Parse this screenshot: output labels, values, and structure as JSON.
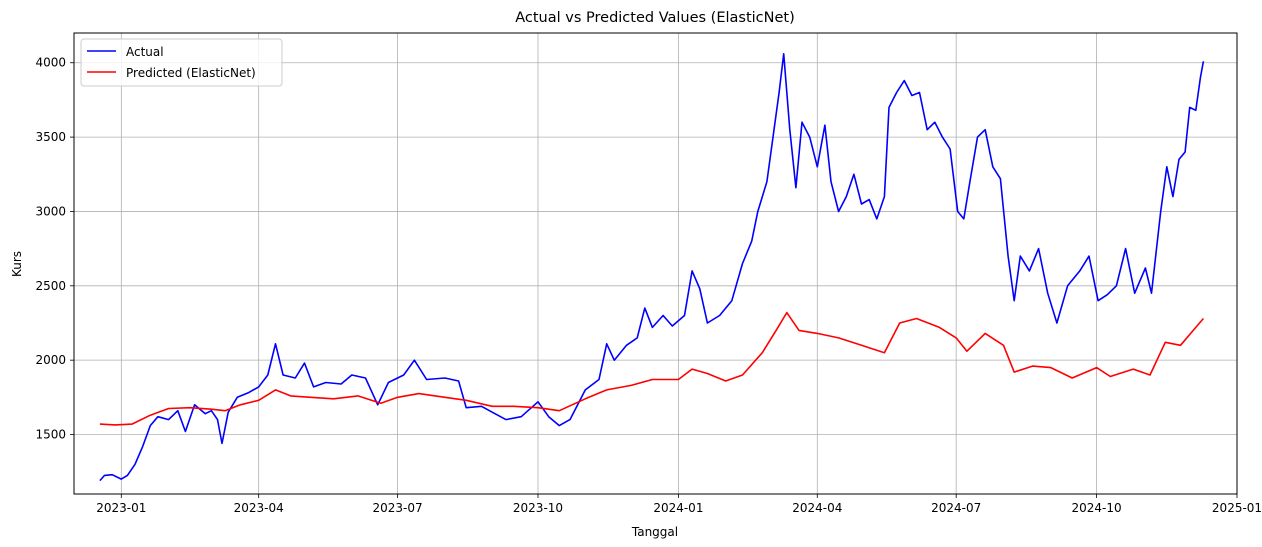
{
  "chart_data": {
    "type": "line",
    "title": "Actual vs Predicted Values (ElasticNet)",
    "xlabel": "Tanggal",
    "ylabel": "Kurs",
    "x_tick_labels": [
      "2023-01",
      "2023-04",
      "2023-07",
      "2023-10",
      "2024-01",
      "2024-04",
      "2024-07",
      "2024-10",
      "2025-01"
    ],
    "x_range": [
      "2022-12-01",
      "2025-01-01"
    ],
    "y_ticks": [
      1500,
      2000,
      2500,
      3000,
      3500,
      4000
    ],
    "ylim": [
      1100,
      4200
    ],
    "grid": true,
    "legend_position": "top-left",
    "series": [
      {
        "name": "Actual",
        "color": "#0000ff",
        "points": [
          [
            "2022-12-18",
            1190
          ],
          [
            "2022-12-21",
            1225
          ],
          [
            "2022-12-26",
            1230
          ],
          [
            "2023-01-01",
            1200
          ],
          [
            "2023-01-05",
            1225
          ],
          [
            "2023-01-10",
            1300
          ],
          [
            "2023-01-15",
            1420
          ],
          [
            "2023-01-20",
            1560
          ],
          [
            "2023-01-25",
            1620
          ],
          [
            "2023-02-01",
            1600
          ],
          [
            "2023-02-07",
            1660
          ],
          [
            "2023-02-12",
            1520
          ],
          [
            "2023-02-18",
            1700
          ],
          [
            "2023-02-25",
            1640
          ],
          [
            "2023-03-01",
            1660
          ],
          [
            "2023-03-05",
            1600
          ],
          [
            "2023-03-08",
            1440
          ],
          [
            "2023-03-12",
            1650
          ],
          [
            "2023-03-18",
            1750
          ],
          [
            "2023-03-25",
            1780
          ],
          [
            "2023-04-01",
            1820
          ],
          [
            "2023-04-07",
            1900
          ],
          [
            "2023-04-12",
            2110
          ],
          [
            "2023-04-17",
            1900
          ],
          [
            "2023-04-25",
            1880
          ],
          [
            "2023-05-01",
            1980
          ],
          [
            "2023-05-07",
            1820
          ],
          [
            "2023-05-15",
            1850
          ],
          [
            "2023-05-25",
            1840
          ],
          [
            "2023-06-01",
            1900
          ],
          [
            "2023-06-10",
            1880
          ],
          [
            "2023-06-18",
            1700
          ],
          [
            "2023-06-25",
            1850
          ],
          [
            "2023-07-05",
            1900
          ],
          [
            "2023-07-12",
            2000
          ],
          [
            "2023-07-20",
            1870
          ],
          [
            "2023-08-01",
            1880
          ],
          [
            "2023-08-10",
            1860
          ],
          [
            "2023-08-15",
            1680
          ],
          [
            "2023-08-25",
            1690
          ],
          [
            "2023-09-01",
            1650
          ],
          [
            "2023-09-10",
            1600
          ],
          [
            "2023-09-20",
            1620
          ],
          [
            "2023-10-01",
            1720
          ],
          [
            "2023-10-08",
            1620
          ],
          [
            "2023-10-15",
            1560
          ],
          [
            "2023-10-22",
            1600
          ],
          [
            "2023-11-01",
            1800
          ],
          [
            "2023-11-10",
            1870
          ],
          [
            "2023-11-15",
            2110
          ],
          [
            "2023-11-20",
            2000
          ],
          [
            "2023-11-28",
            2100
          ],
          [
            "2023-12-05",
            2150
          ],
          [
            "2023-12-10",
            2350
          ],
          [
            "2023-12-15",
            2220
          ],
          [
            "2023-12-22",
            2300
          ],
          [
            "2023-12-28",
            2230
          ],
          [
            "2024-01-05",
            2300
          ],
          [
            "2024-01-10",
            2600
          ],
          [
            "2024-01-15",
            2480
          ],
          [
            "2024-01-20",
            2250
          ],
          [
            "2024-01-28",
            2300
          ],
          [
            "2024-02-05",
            2400
          ],
          [
            "2024-02-12",
            2650
          ],
          [
            "2024-02-18",
            2800
          ],
          [
            "2024-02-22",
            3000
          ],
          [
            "2024-02-28",
            3200
          ],
          [
            "2024-03-03",
            3500
          ],
          [
            "2024-03-07",
            3800
          ],
          [
            "2024-03-10",
            4060
          ],
          [
            "2024-03-14",
            3550
          ],
          [
            "2024-03-18",
            3160
          ],
          [
            "2024-03-22",
            3600
          ],
          [
            "2024-03-27",
            3500
          ],
          [
            "2024-04-01",
            3300
          ],
          [
            "2024-04-06",
            3580
          ],
          [
            "2024-04-10",
            3200
          ],
          [
            "2024-04-15",
            3000
          ],
          [
            "2024-04-20",
            3100
          ],
          [
            "2024-04-25",
            3250
          ],
          [
            "2024-04-30",
            3050
          ],
          [
            "2024-05-05",
            3080
          ],
          [
            "2024-05-10",
            2950
          ],
          [
            "2024-05-15",
            3100
          ],
          [
            "2024-05-18",
            3700
          ],
          [
            "2024-05-23",
            3800
          ],
          [
            "2024-05-28",
            3880
          ],
          [
            "2024-06-02",
            3780
          ],
          [
            "2024-06-07",
            3800
          ],
          [
            "2024-06-12",
            3550
          ],
          [
            "2024-06-17",
            3600
          ],
          [
            "2024-06-22",
            3500
          ],
          [
            "2024-06-27",
            3420
          ],
          [
            "2024-07-02",
            3000
          ],
          [
            "2024-07-06",
            2950
          ],
          [
            "2024-07-10",
            3200
          ],
          [
            "2024-07-15",
            3500
          ],
          [
            "2024-07-20",
            3550
          ],
          [
            "2024-07-25",
            3300
          ],
          [
            "2024-07-30",
            3220
          ],
          [
            "2024-08-04",
            2700
          ],
          [
            "2024-08-08",
            2400
          ],
          [
            "2024-08-12",
            2700
          ],
          [
            "2024-08-18",
            2600
          ],
          [
            "2024-08-24",
            2750
          ],
          [
            "2024-08-30",
            2450
          ],
          [
            "2024-09-05",
            2250
          ],
          [
            "2024-09-12",
            2500
          ],
          [
            "2024-09-20",
            2600
          ],
          [
            "2024-09-26",
            2700
          ],
          [
            "2024-10-02",
            2400
          ],
          [
            "2024-10-08",
            2440
          ],
          [
            "2024-10-14",
            2500
          ],
          [
            "2024-10-20",
            2750
          ],
          [
            "2024-10-26",
            2450
          ],
          [
            "2024-11-02",
            2620
          ],
          [
            "2024-11-06",
            2450
          ],
          [
            "2024-11-12",
            3000
          ],
          [
            "2024-11-16",
            3300
          ],
          [
            "2024-11-20",
            3100
          ],
          [
            "2024-11-24",
            3350
          ],
          [
            "2024-11-28",
            3400
          ],
          [
            "2024-12-01",
            3700
          ],
          [
            "2024-12-05",
            3680
          ],
          [
            "2024-12-08",
            3900
          ],
          [
            "2024-12-10",
            4010
          ]
        ]
      },
      {
        "name": "Predicted (ElasticNet)",
        "color": "#ff0000",
        "points": [
          [
            "2022-12-18",
            1570
          ],
          [
            "2022-12-28",
            1565
          ],
          [
            "2023-01-08",
            1570
          ],
          [
            "2023-01-20",
            1630
          ],
          [
            "2023-02-01",
            1675
          ],
          [
            "2023-02-15",
            1680
          ],
          [
            "2023-03-01",
            1670
          ],
          [
            "2023-03-10",
            1660
          ],
          [
            "2023-03-20",
            1700
          ],
          [
            "2023-04-01",
            1730
          ],
          [
            "2023-04-12",
            1800
          ],
          [
            "2023-04-22",
            1760
          ],
          [
            "2023-05-05",
            1750
          ],
          [
            "2023-05-20",
            1740
          ],
          [
            "2023-06-05",
            1760
          ],
          [
            "2023-06-20",
            1710
          ],
          [
            "2023-07-01",
            1750
          ],
          [
            "2023-07-15",
            1775
          ],
          [
            "2023-08-01",
            1750
          ],
          [
            "2023-08-15",
            1730
          ],
          [
            "2023-09-01",
            1690
          ],
          [
            "2023-09-15",
            1690
          ],
          [
            "2023-10-01",
            1680
          ],
          [
            "2023-10-15",
            1660
          ],
          [
            "2023-11-01",
            1740
          ],
          [
            "2023-11-15",
            1800
          ],
          [
            "2023-12-01",
            1830
          ],
          [
            "2023-12-15",
            1870
          ],
          [
            "2024-01-01",
            1870
          ],
          [
            "2024-01-10",
            1940
          ],
          [
            "2024-01-20",
            1910
          ],
          [
            "2024-02-01",
            1860
          ],
          [
            "2024-02-12",
            1900
          ],
          [
            "2024-02-25",
            2050
          ],
          [
            "2024-03-05",
            2200
          ],
          [
            "2024-03-12",
            2320
          ],
          [
            "2024-03-20",
            2200
          ],
          [
            "2024-04-01",
            2180
          ],
          [
            "2024-04-15",
            2150
          ],
          [
            "2024-04-30",
            2100
          ],
          [
            "2024-05-15",
            2050
          ],
          [
            "2024-05-25",
            2250
          ],
          [
            "2024-06-05",
            2280
          ],
          [
            "2024-06-20",
            2220
          ],
          [
            "2024-07-01",
            2150
          ],
          [
            "2024-07-08",
            2060
          ],
          [
            "2024-07-20",
            2180
          ],
          [
            "2024-08-01",
            2100
          ],
          [
            "2024-08-08",
            1920
          ],
          [
            "2024-08-20",
            1960
          ],
          [
            "2024-09-01",
            1950
          ],
          [
            "2024-09-15",
            1880
          ],
          [
            "2024-10-01",
            1950
          ],
          [
            "2024-10-10",
            1890
          ],
          [
            "2024-10-25",
            1940
          ],
          [
            "2024-11-05",
            1900
          ],
          [
            "2024-11-15",
            2120
          ],
          [
            "2024-11-25",
            2100
          ],
          [
            "2024-12-05",
            2220
          ],
          [
            "2024-12-10",
            2280
          ]
        ]
      }
    ]
  }
}
